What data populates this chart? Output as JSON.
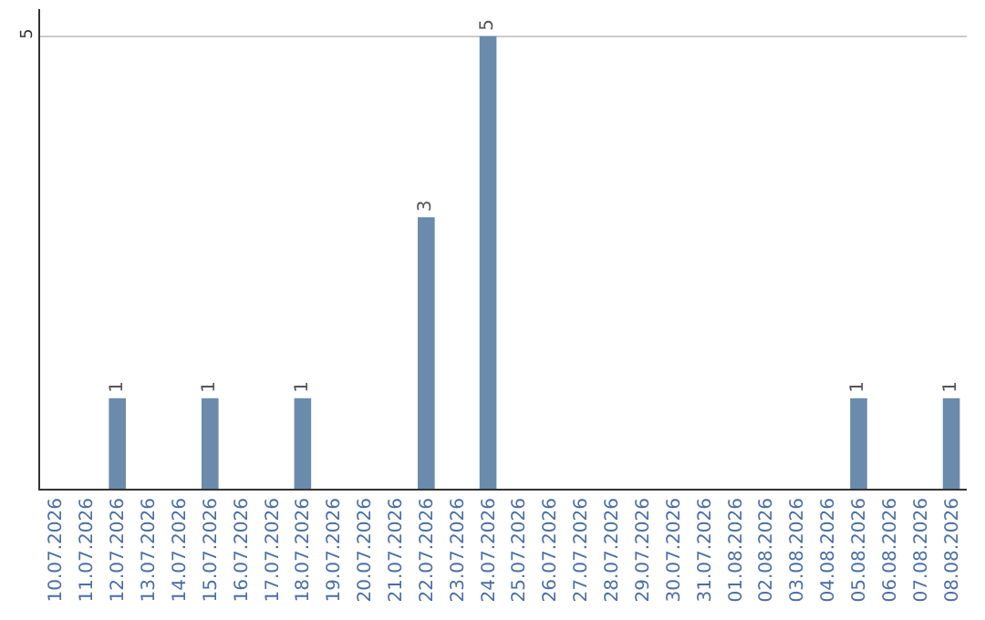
{
  "chart_data": {
    "type": "bar",
    "categories": [
      "10.07.2026",
      "11.07.2026",
      "12.07.2026",
      "13.07.2026",
      "14.07.2026",
      "15.07.2026",
      "16.07.2026",
      "17.07.2026",
      "18.07.2026",
      "19.07.2026",
      "20.07.2026",
      "21.07.2026",
      "22.07.2026",
      "23.07.2026",
      "24.07.2026",
      "25.07.2026",
      "26.07.2026",
      "27.07.2026",
      "28.07.2026",
      "29.07.2026",
      "30.07.2026",
      "31.07.2026",
      "01.08.2026",
      "02.08.2026",
      "03.08.2026",
      "04.08.2026",
      "05.08.2026",
      "06.08.2026",
      "07.08.2026",
      "08.08.2026"
    ],
    "values": [
      0,
      0,
      1,
      0,
      0,
      1,
      0,
      0,
      1,
      0,
      0,
      0,
      3,
      0,
      5,
      0,
      0,
      0,
      0,
      0,
      0,
      0,
      0,
      0,
      0,
      0,
      1,
      0,
      0,
      1
    ],
    "value_labels": [
      null,
      null,
      "1",
      null,
      null,
      "1",
      null,
      null,
      "1",
      null,
      null,
      null,
      "3",
      null,
      "5",
      null,
      null,
      null,
      null,
      null,
      null,
      null,
      null,
      null,
      null,
      null,
      "1",
      null,
      null,
      "1"
    ],
    "color": "#6a8bab",
    "ylim": [
      0,
      5.3
    ],
    "yticks": [
      5
    ],
    "grid": "y"
  }
}
